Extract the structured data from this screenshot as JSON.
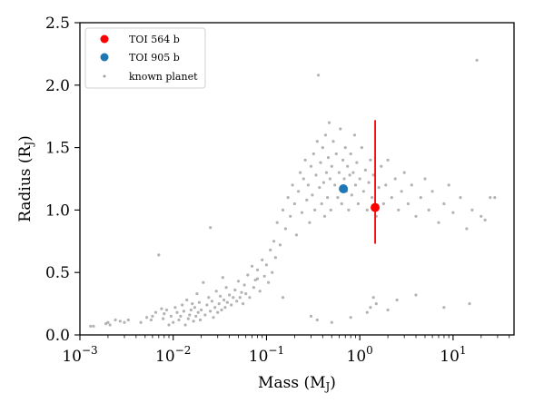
{
  "chart_data": {
    "type": "scatter",
    "title": "",
    "xlabel": "Mass (M",
    "xlabel_sub": "J",
    "xlabel_close": ")",
    "ylabel": "Radius (R",
    "ylabel_sub": "J",
    "ylabel_close": ")",
    "xscale": "log",
    "xlim": [
      0.001,
      45
    ],
    "ylim": [
      0.0,
      2.5
    ],
    "xticks": [
      {
        "value": 0.001,
        "base": "10",
        "exp": "−3"
      },
      {
        "value": 0.01,
        "base": "10",
        "exp": "−2"
      },
      {
        "value": 0.1,
        "base": "10",
        "exp": "−1"
      },
      {
        "value": 1,
        "base": "10",
        "exp": "0"
      },
      {
        "value": 10,
        "base": "10",
        "exp": "1"
      }
    ],
    "yticks": [
      {
        "value": 0.0,
        "label": "0.0"
      },
      {
        "value": 0.5,
        "label": "0.5"
      },
      {
        "value": 1.0,
        "label": "1.0"
      },
      {
        "value": 1.5,
        "label": "1.5"
      },
      {
        "value": 2.0,
        "label": "2.0"
      },
      {
        "value": 2.5,
        "label": "2.5"
      }
    ],
    "grid": false,
    "legend_position": "top-left",
    "colors": {
      "toi564": "#ff0000",
      "toi905": "#1f77b4",
      "known": "#a0a0a0"
    },
    "series": [
      {
        "name": "TOI 564 b",
        "marker": "circle",
        "color": "#ff0000",
        "points": [
          {
            "x": 1.46,
            "y": 1.02,
            "yerr_low": 0.29,
            "yerr_high": 0.7
          }
        ]
      },
      {
        "name": "TOI 905 b",
        "marker": "circle",
        "color": "#1f77b4",
        "points": [
          {
            "x": 0.667,
            "y": 1.17
          }
        ]
      },
      {
        "name": "known planet",
        "marker": "dot",
        "color": "#a0a0a0",
        "points": [
          [
            0.0013,
            0.07
          ],
          [
            0.0014,
            0.07
          ],
          [
            0.0019,
            0.09
          ],
          [
            0.002,
            0.1
          ],
          [
            0.0021,
            0.08
          ],
          [
            0.0024,
            0.12
          ],
          [
            0.0027,
            0.11
          ],
          [
            0.003,
            0.1
          ],
          [
            0.0033,
            0.12
          ],
          [
            0.0045,
            0.1
          ],
          [
            0.0052,
            0.14
          ],
          [
            0.0058,
            0.12
          ],
          [
            0.006,
            0.15
          ],
          [
            0.0065,
            0.18
          ],
          [
            0.007,
            0.64
          ],
          [
            0.0075,
            0.21
          ],
          [
            0.0078,
            0.13
          ],
          [
            0.008,
            0.17
          ],
          [
            0.0085,
            0.2
          ],
          [
            0.009,
            0.08
          ],
          [
            0.0095,
            0.15
          ],
          [
            0.01,
            0.1
          ],
          [
            0.0105,
            0.22
          ],
          [
            0.011,
            0.18
          ],
          [
            0.0115,
            0.12
          ],
          [
            0.012,
            0.15
          ],
          [
            0.0125,
            0.24
          ],
          [
            0.013,
            0.19
          ],
          [
            0.0135,
            0.08
          ],
          [
            0.014,
            0.28
          ],
          [
            0.0145,
            0.13
          ],
          [
            0.015,
            0.16
          ],
          [
            0.0155,
            0.2
          ],
          [
            0.016,
            0.25
          ],
          [
            0.0165,
            0.11
          ],
          [
            0.017,
            0.22
          ],
          [
            0.0175,
            0.15
          ],
          [
            0.018,
            0.33
          ],
          [
            0.0185,
            0.18
          ],
          [
            0.019,
            0.26
          ],
          [
            0.0195,
            0.12
          ],
          [
            0.02,
            0.2
          ],
          [
            0.021,
            0.42
          ],
          [
            0.022,
            0.16
          ],
          [
            0.023,
            0.24
          ],
          [
            0.024,
            0.3
          ],
          [
            0.025,
            0.19
          ],
          [
            0.026,
            0.27
          ],
          [
            0.027,
            0.14
          ],
          [
            0.028,
            0.22
          ],
          [
            0.029,
            0.35
          ],
          [
            0.03,
            0.18
          ],
          [
            0.031,
            0.25
          ],
          [
            0.032,
            0.31
          ],
          [
            0.033,
            0.2
          ],
          [
            0.034,
            0.46
          ],
          [
            0.035,
            0.28
          ],
          [
            0.036,
            0.22
          ],
          [
            0.037,
            0.38
          ],
          [
            0.038,
            0.26
          ],
          [
            0.04,
            0.32
          ],
          [
            0.042,
            0.24
          ],
          [
            0.044,
            0.3
          ],
          [
            0.046,
            0.36
          ],
          [
            0.048,
            0.27
          ],
          [
            0.05,
            0.43
          ],
          [
            0.052,
            0.3
          ],
          [
            0.054,
            0.34
          ],
          [
            0.056,
            0.25
          ],
          [
            0.058,
            0.4
          ],
          [
            0.06,
            0.33
          ],
          [
            0.063,
            0.48
          ],
          [
            0.066,
            0.3
          ],
          [
            0.07,
            0.55
          ],
          [
            0.073,
            0.38
          ],
          [
            0.076,
            0.44
          ],
          [
            0.08,
            0.52
          ],
          [
            0.085,
            0.35
          ],
          [
            0.09,
            0.6
          ],
          [
            0.095,
            0.47
          ],
          [
            0.1,
            0.56
          ],
          [
            0.105,
            0.42
          ],
          [
            0.11,
            0.68
          ],
          [
            0.115,
            0.5
          ],
          [
            0.12,
            0.75
          ],
          [
            0.125,
            0.62
          ],
          [
            0.13,
            0.9
          ],
          [
            0.14,
            0.72
          ],
          [
            0.15,
            1.0
          ],
          [
            0.16,
            0.85
          ],
          [
            0.17,
            1.1
          ],
          [
            0.18,
            0.95
          ],
          [
            0.19,
            1.2
          ],
          [
            0.2,
            1.05
          ],
          [
            0.21,
            0.8
          ],
          [
            0.22,
            1.15
          ],
          [
            0.23,
            1.3
          ],
          [
            0.24,
            0.98
          ],
          [
            0.25,
            1.25
          ],
          [
            0.26,
            1.4
          ],
          [
            0.27,
            1.08
          ],
          [
            0.28,
            1.2
          ],
          [
            0.29,
            0.9
          ],
          [
            0.3,
            1.35
          ],
          [
            0.31,
            1.12
          ],
          [
            0.32,
            1.45
          ],
          [
            0.33,
            1.0
          ],
          [
            0.34,
            1.28
          ],
          [
            0.35,
            1.55
          ],
          [
            0.36,
            2.08
          ],
          [
            0.37,
            1.18
          ],
          [
            0.38,
            1.38
          ],
          [
            0.39,
            1.05
          ],
          [
            0.4,
            1.5
          ],
          [
            0.41,
            1.22
          ],
          [
            0.42,
            0.95
          ],
          [
            0.43,
            1.6
          ],
          [
            0.44,
            1.3
          ],
          [
            0.45,
            1.1
          ],
          [
            0.46,
            1.42
          ],
          [
            0.47,
            1.7
          ],
          [
            0.48,
            1.25
          ],
          [
            0.49,
            1.0
          ],
          [
            0.5,
            1.35
          ],
          [
            0.52,
            1.55
          ],
          [
            0.54,
            1.2
          ],
          [
            0.56,
            1.45
          ],
          [
            0.58,
            1.1
          ],
          [
            0.6,
            1.3
          ],
          [
            0.62,
            1.65
          ],
          [
            0.64,
            1.05
          ],
          [
            0.66,
            1.4
          ],
          [
            0.68,
            1.25
          ],
          [
            0.7,
            1.5
          ],
          [
            0.72,
            1.15
          ],
          [
            0.74,
            1.35
          ],
          [
            0.76,
            1.0
          ],
          [
            0.78,
            1.28
          ],
          [
            0.8,
            1.45
          ],
          [
            0.82,
            1.12
          ],
          [
            0.85,
            1.3
          ],
          [
            0.88,
            1.6
          ],
          [
            0.9,
            1.2
          ],
          [
            0.93,
            1.38
          ],
          [
            0.96,
            1.05
          ],
          [
            1.0,
            1.25
          ],
          [
            1.05,
            1.5
          ],
          [
            1.1,
            1.15
          ],
          [
            1.15,
            1.32
          ],
          [
            1.2,
            1.0
          ],
          [
            1.25,
            1.22
          ],
          [
            1.3,
            1.4
          ],
          [
            1.35,
            1.1
          ],
          [
            1.4,
            1.28
          ],
          [
            1.5,
            0.95
          ],
          [
            1.6,
            1.18
          ],
          [
            1.7,
            1.35
          ],
          [
            1.8,
            1.05
          ],
          [
            1.9,
            1.2
          ],
          [
            2.0,
            1.4
          ],
          [
            2.2,
            1.1
          ],
          [
            2.4,
            1.25
          ],
          [
            2.6,
            1.0
          ],
          [
            2.8,
            1.15
          ],
          [
            3.0,
            1.3
          ],
          [
            3.3,
            1.05
          ],
          [
            3.6,
            1.2
          ],
          [
            4.0,
            0.95
          ],
          [
            4.5,
            1.1
          ],
          [
            5.0,
            1.25
          ],
          [
            5.5,
            1.0
          ],
          [
            6.0,
            1.15
          ],
          [
            7.0,
            0.9
          ],
          [
            8.0,
            1.05
          ],
          [
            9.0,
            1.2
          ],
          [
            10.0,
            0.98
          ],
          [
            12.0,
            1.1
          ],
          [
            14.0,
            0.85
          ],
          [
            16.0,
            1.0
          ],
          [
            18.0,
            2.2
          ],
          [
            20.0,
            0.95
          ],
          [
            22.0,
            0.92
          ],
          [
            25.0,
            1.1
          ],
          [
            28.0,
            1.1
          ],
          [
            1.3,
            0.22
          ],
          [
            1.4,
            0.3
          ],
          [
            1.5,
            0.25
          ],
          [
            2.0,
            0.2
          ],
          [
            2.5,
            0.28
          ],
          [
            0.8,
            0.14
          ],
          [
            1.2,
            0.18
          ],
          [
            0.5,
            0.1
          ],
          [
            0.3,
            0.15
          ],
          [
            0.35,
            0.12
          ],
          [
            4.0,
            0.32
          ],
          [
            8.0,
            0.22
          ],
          [
            15.0,
            0.25
          ],
          [
            0.15,
            0.3
          ],
          [
            0.08,
            0.45
          ],
          [
            0.025,
            0.86
          ]
        ]
      }
    ]
  }
}
